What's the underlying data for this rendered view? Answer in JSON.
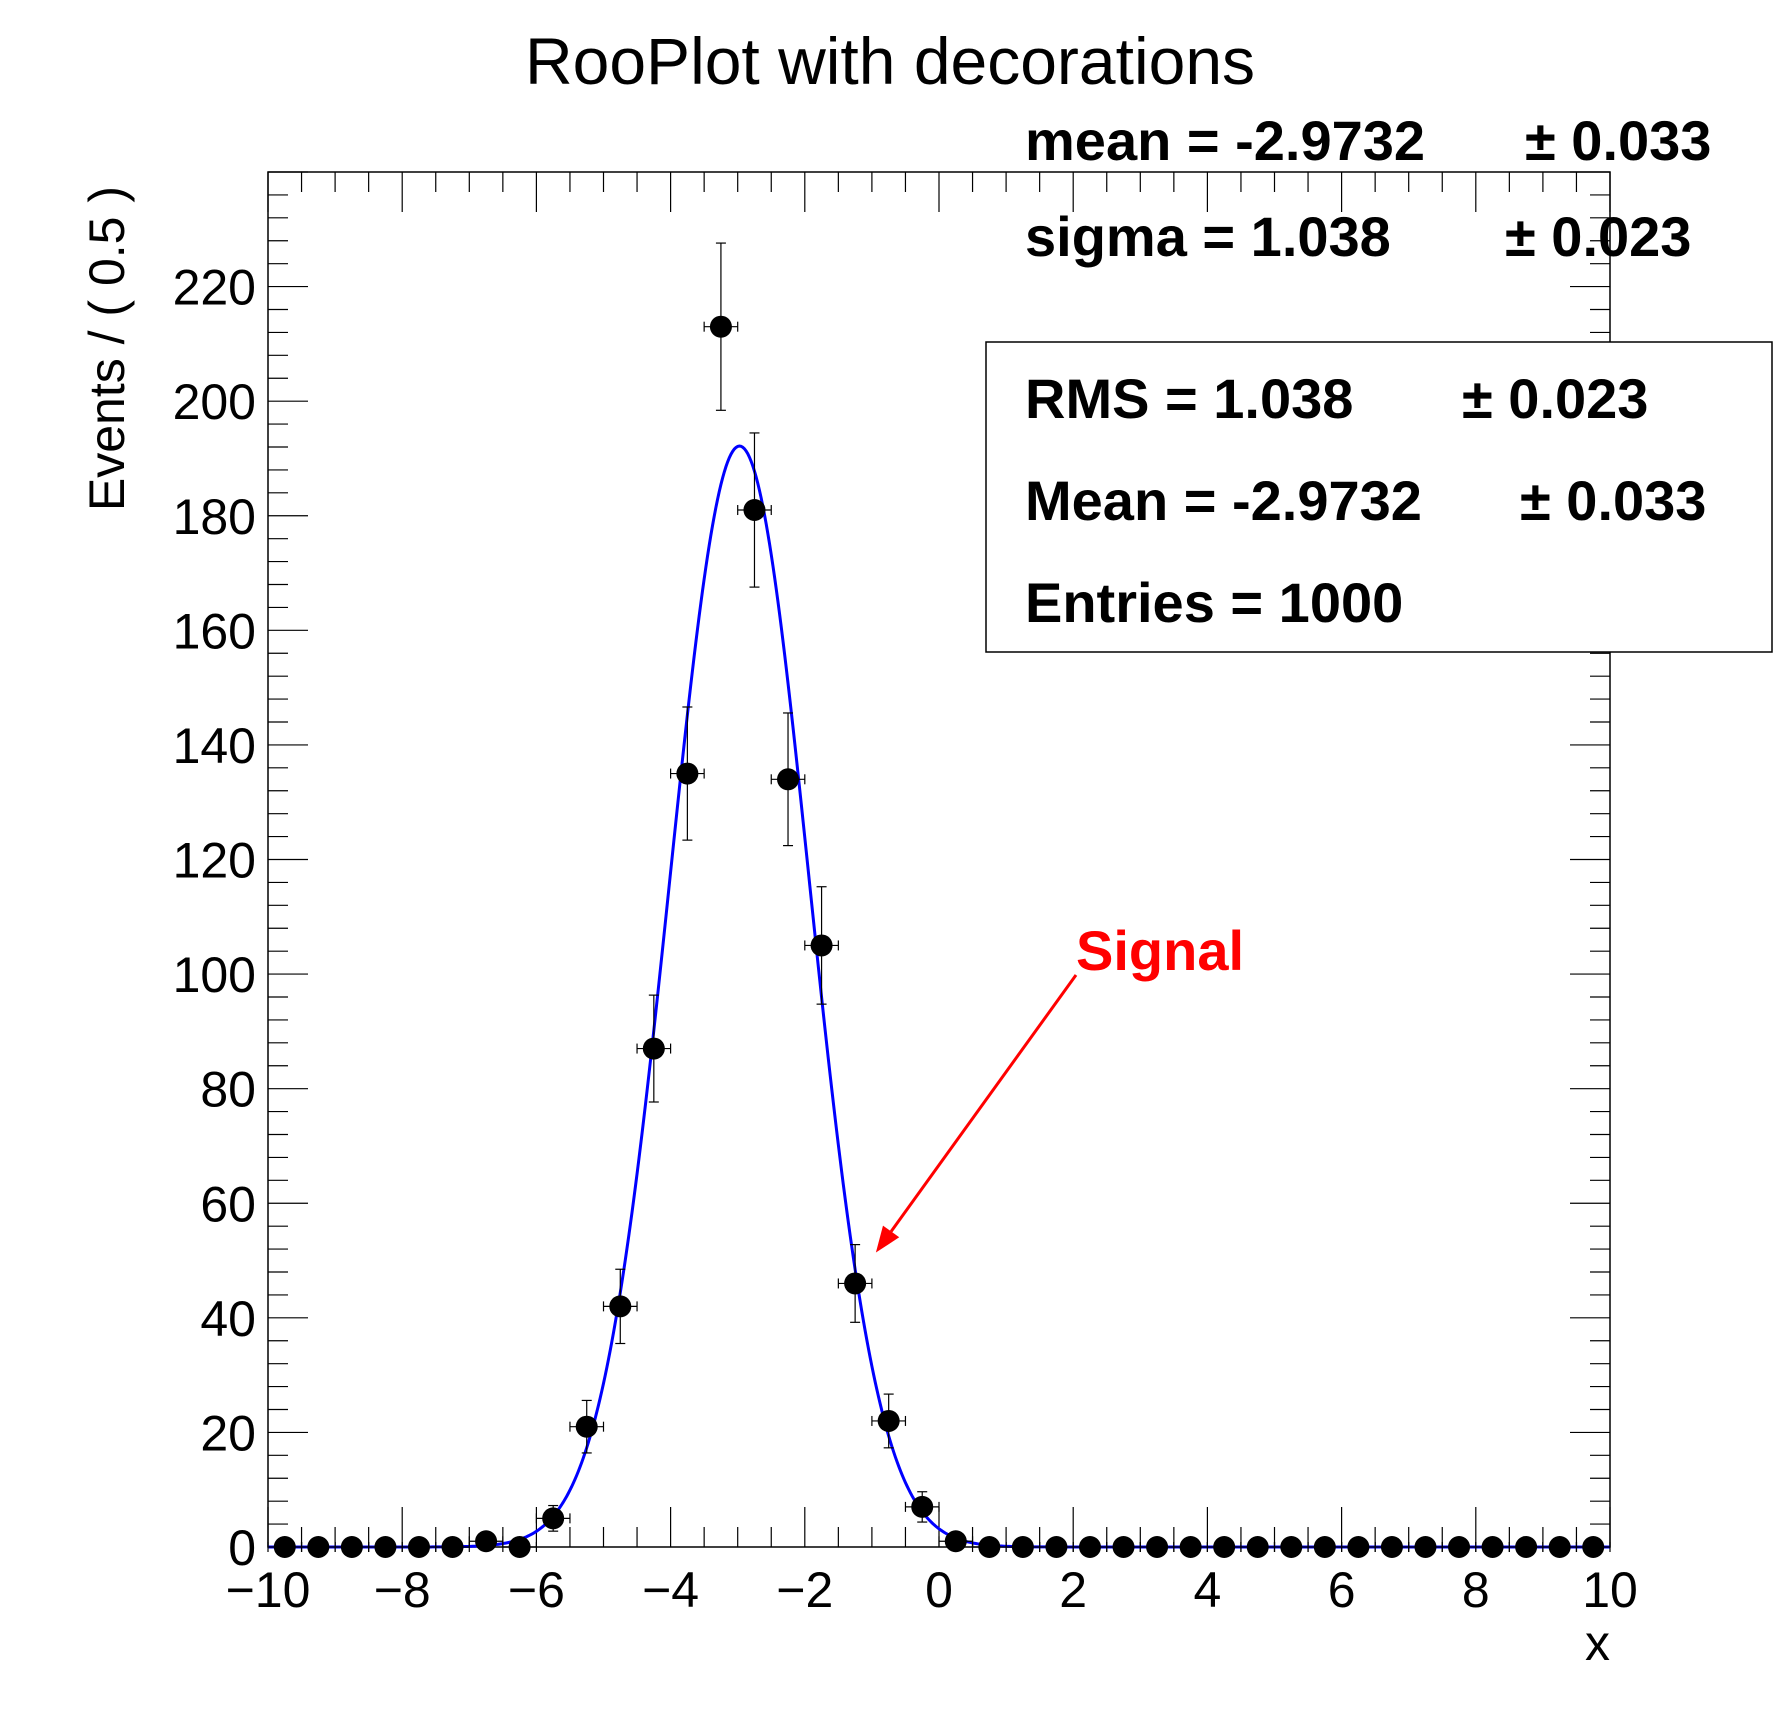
{
  "chart_data": {
    "type": "scatter",
    "title": "RooPlot with decorations",
    "xlabel": "x",
    "ylabel": "Events / ( 0.5 )",
    "xlim": [
      -10,
      10
    ],
    "ylim": [
      0,
      240
    ],
    "x_ticks": [
      -10,
      -8,
      -6,
      -4,
      -2,
      0,
      2,
      4,
      6,
      8,
      10
    ],
    "x_tick_labels": [
      "−10",
      "−8",
      "−6",
      "−4",
      "−2",
      "0",
      "2",
      "4",
      "6",
      "8",
      "10"
    ],
    "y_ticks": [
      0,
      20,
      40,
      60,
      80,
      100,
      120,
      140,
      160,
      180,
      200,
      220
    ],
    "y_tick_labels": [
      "0",
      "20",
      "40",
      "60",
      "80",
      "100",
      "120",
      "140",
      "160",
      "180",
      "200",
      "220"
    ],
    "bin_width": 0.5,
    "points": {
      "x": [
        -9.75,
        -9.25,
        -8.75,
        -8.25,
        -7.75,
        -7.25,
        -6.75,
        -6.25,
        -5.75,
        -5.25,
        -4.75,
        -4.25,
        -3.75,
        -3.25,
        -2.75,
        -2.25,
        -1.75,
        -1.25,
        -0.75,
        -0.25,
        0.25,
        0.75,
        1.25,
        1.75,
        2.25,
        2.75,
        3.25,
        3.75,
        4.25,
        4.75,
        5.25,
        5.75,
        6.25,
        6.75,
        7.25,
        7.75,
        8.25,
        8.75,
        9.25,
        9.75
      ],
      "y": [
        0,
        0,
        0,
        0,
        0,
        0,
        1,
        0,
        5,
        21,
        42,
        87,
        135,
        213,
        181,
        134,
        105,
        46,
        22,
        7,
        1,
        0,
        0,
        0,
        0,
        0,
        0,
        0,
        0,
        0,
        0,
        0,
        0,
        0,
        0,
        0,
        0,
        0,
        0,
        0
      ]
    },
    "fit_curve": {
      "type": "gaussian",
      "mean": -2.9732,
      "sigma": 1.038,
      "normalization": 1000,
      "color": "#0000ff"
    },
    "fit_params": [
      {
        "label": "mean = -2.9732",
        "error": "± 0.033"
      },
      {
        "label": "sigma =  1.038",
        "error": "± 0.023"
      }
    ],
    "stats_box": [
      {
        "label": "RMS =  1.038",
        "error": "± 0.023"
      },
      {
        "label": "Mean = -2.9732",
        "error": "± 0.033"
      },
      {
        "label": "Entries =  1000",
        "error": ""
      }
    ],
    "annotation": {
      "text": "Signal",
      "color": "#ff0000",
      "arrow_to": {
        "x": -1.0,
        "y": 50
      }
    },
    "grid": false,
    "legend": "none"
  }
}
